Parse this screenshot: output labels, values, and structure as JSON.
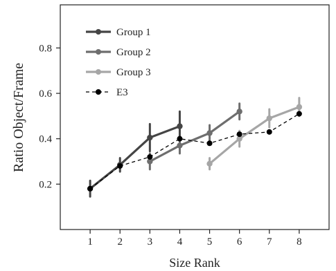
{
  "chart_data": {
    "type": "line",
    "xlabel": "Size Rank",
    "ylabel": "Ratio Object/Frame",
    "xlim": [
      0,
      9
    ],
    "ylim": [
      0,
      0.99
    ],
    "xticks": [
      1,
      2,
      3,
      4,
      5,
      6,
      7,
      8
    ],
    "yticks": [
      0.2,
      0.4,
      0.6,
      0.8
    ],
    "ytick_labels": [
      "0.2",
      "0.4",
      "0.6",
      "0.8"
    ],
    "legend_position": "top-left",
    "grid": false,
    "series": [
      {
        "name": "Group 1",
        "color": "#454545",
        "style": "solid",
        "x": [
          1,
          2,
          3,
          4
        ],
        "values": [
          0.18,
          0.285,
          0.405,
          0.455
        ],
        "error": [
          0.035,
          0.03,
          0.06,
          0.065
        ]
      },
      {
        "name": "Group 2",
        "color": "#6e6e6e",
        "style": "solid",
        "x": [
          3,
          4,
          5,
          6
        ],
        "values": [
          0.3,
          0.37,
          0.425,
          0.52
        ],
        "error": [
          0.035,
          0.035,
          0.035,
          0.035
        ]
      },
      {
        "name": "Group 3",
        "color": "#a6a6a6",
        "style": "solid",
        "x": [
          5,
          6,
          7,
          8
        ],
        "values": [
          0.29,
          0.4,
          0.49,
          0.54
        ],
        "error": [
          0.025,
          0.035,
          0.04,
          0.04
        ]
      },
      {
        "name": "E3",
        "color": "#000000",
        "style": "dashed",
        "x": [
          1,
          2,
          3,
          4,
          5,
          6,
          7,
          8
        ],
        "values": [
          0.18,
          0.28,
          0.32,
          0.4,
          0.38,
          0.42,
          0.43,
          0.51
        ],
        "error": []
      }
    ]
  }
}
